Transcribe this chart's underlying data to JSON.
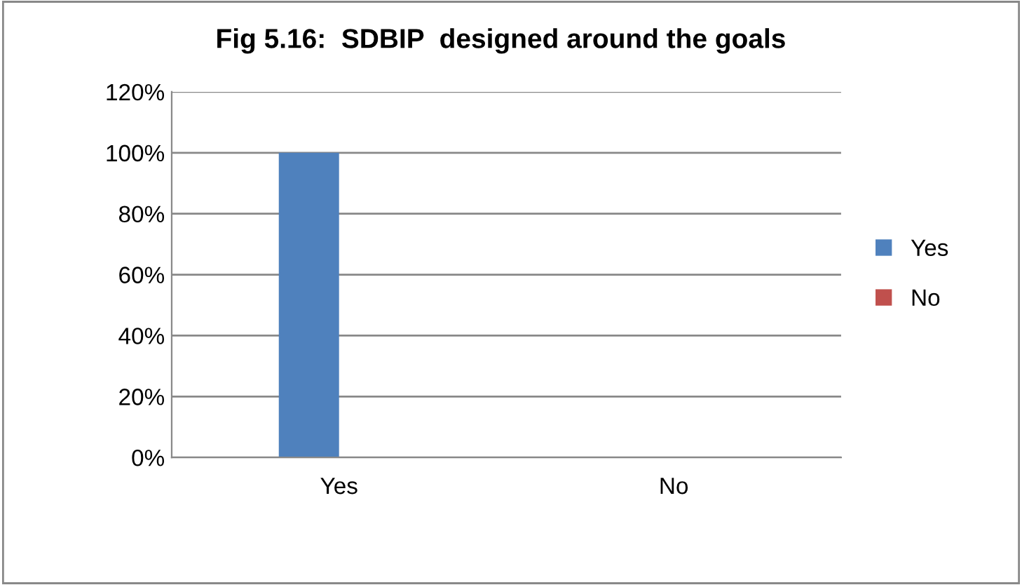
{
  "chart_data": {
    "type": "bar",
    "title": "Fig 5.16:  SDBIP  designed around the goals",
    "categories": [
      "Yes",
      "No"
    ],
    "series": [
      {
        "name": "Yes",
        "color": "#4f81bd",
        "values": [
          100,
          0
        ]
      },
      {
        "name": "No",
        "color": "#c0504d",
        "values": [
          0,
          0
        ]
      }
    ],
    "ylim": [
      0,
      120
    ],
    "yticks": [
      {
        "value": 0,
        "label": "0%"
      },
      {
        "value": 20,
        "label": "20%"
      },
      {
        "value": 40,
        "label": "40%"
      },
      {
        "value": 60,
        "label": "60%"
      },
      {
        "value": 80,
        "label": "80%"
      },
      {
        "value": 100,
        "label": "100%"
      },
      {
        "value": 120,
        "label": "120%"
      }
    ],
    "grid": "y",
    "legend": "right"
  }
}
